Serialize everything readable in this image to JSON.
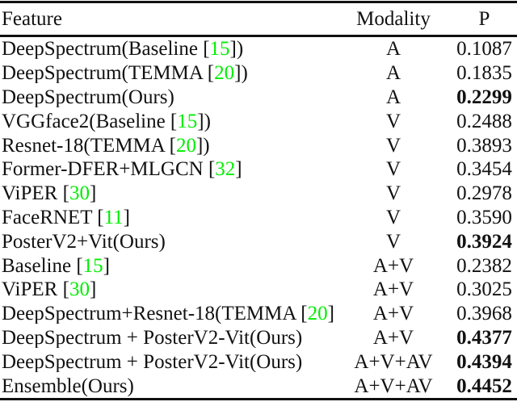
{
  "table": {
    "headers": [
      "Feature",
      "Modality",
      "P"
    ],
    "cite_color": "#00ee00",
    "text_color": "#111111",
    "rows": [
      {
        "feature_pre": "DeepSpectrum(Baseline [",
        "cite": "15",
        "feature_post": "])",
        "modality": "A",
        "p": "0.1087",
        "bold": false
      },
      {
        "feature_pre": "DeepSpectrum(TEMMA [",
        "cite": "20",
        "feature_post": "])",
        "modality": "A",
        "p": "0.1835",
        "bold": false
      },
      {
        "feature_pre": "DeepSpectrum(Ours)",
        "cite": "",
        "feature_post": "",
        "modality": "A",
        "p": "0.2299",
        "bold": true
      },
      {
        "feature_pre": "VGGface2(Baseline [",
        "cite": "15",
        "feature_post": "])",
        "modality": "V",
        "p": "0.2488",
        "bold": false
      },
      {
        "feature_pre": "Resnet-18(TEMMA [",
        "cite": "20",
        "feature_post": "])",
        "modality": "V",
        "p": "0.3893",
        "bold": false
      },
      {
        "feature_pre": "Former-DFER+MLGCN [",
        "cite": "32",
        "feature_post": "]",
        "modality": "V",
        "p": "0.3454",
        "bold": false
      },
      {
        "feature_pre": "ViPER [",
        "cite": "30",
        "feature_post": "]",
        "modality": "V",
        "p": "0.2978",
        "bold": false
      },
      {
        "feature_pre": "FaceRNET [",
        "cite": "11",
        "feature_post": "]",
        "modality": "V",
        "p": "0.3590",
        "bold": false
      },
      {
        "feature_pre": "PosterV2+Vit(Ours)",
        "cite": "",
        "feature_post": "",
        "modality": "V",
        "p": "0.3924",
        "bold": true
      },
      {
        "feature_pre": "Baseline [",
        "cite": "15",
        "feature_post": "]",
        "modality": "A+V",
        "p": "0.2382",
        "bold": false
      },
      {
        "feature_pre": "ViPER [",
        "cite": "30",
        "feature_post": "]",
        "modality": "A+V",
        "p": "0.3025",
        "bold": false
      },
      {
        "feature_pre": "DeepSpectrum+Resnet-18(TEMMA [",
        "cite": "20",
        "feature_post": "])",
        "modality": "A+V",
        "p": "0.3968",
        "bold": false
      },
      {
        "feature_pre": "DeepSpectrum + PosterV2-Vit(Ours)",
        "cite": "",
        "feature_post": "",
        "modality": "A+V",
        "p": "0.4377",
        "bold": true
      },
      {
        "feature_pre": "DeepSpectrum + PosterV2-Vit(Ours)",
        "cite": "",
        "feature_post": "",
        "modality": "A+V+AV",
        "p": "0.4394",
        "bold": true
      },
      {
        "feature_pre": "Ensemble(Ours)",
        "cite": "",
        "feature_post": "",
        "modality": "A+V+AV",
        "p": "0.4452",
        "bold": true
      }
    ]
  }
}
